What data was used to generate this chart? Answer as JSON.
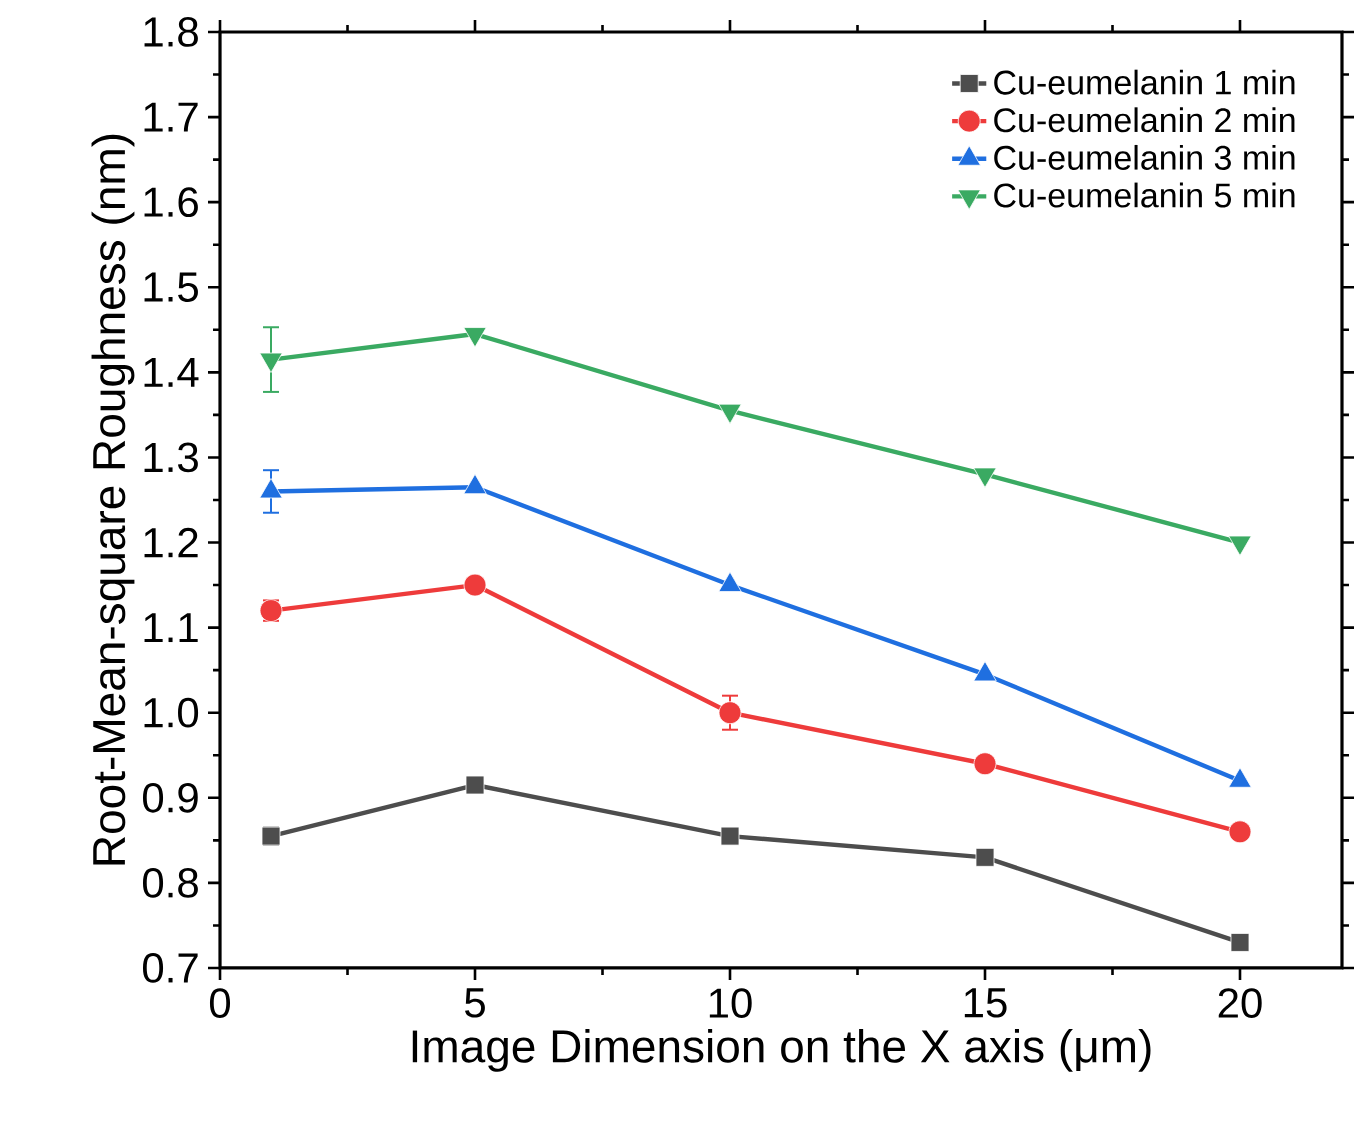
{
  "chart_data": {
    "type": "line",
    "xlabel": "Image Dimension on the X axis (μm)",
    "ylabel": "Root-Mean-square Roughness (nm)",
    "x": [
      1,
      5,
      10,
      15,
      20
    ],
    "xlim": [
      0,
      22
    ],
    "xticks": [
      0,
      5,
      10,
      15,
      20
    ],
    "ylim": [
      0.7,
      1.8
    ],
    "yticks": [
      0.7,
      0.8,
      0.9,
      {
        "value": 1.0,
        "label": "1.0"
      },
      1.1,
      1.2,
      1.3,
      1.4,
      1.5,
      1.6,
      1.7,
      1.8
    ],
    "legend": "top right",
    "grid": false,
    "line_style": "solid",
    "series": [
      {
        "name": "Cu-eumelanin 1 min",
        "color": "#4d4d4d",
        "marker": "square",
        "values": [
          0.855,
          0.915,
          0.855,
          0.83,
          0.73
        ],
        "errors": [
          0.01,
          null,
          null,
          null,
          null
        ]
      },
      {
        "name": "Cu-eumelanin 2 min",
        "color": "#ee3b3b",
        "marker": "circle",
        "values": [
          1.12,
          1.15,
          1.0,
          0.94,
          0.86
        ],
        "errors": [
          0.012,
          null,
          0.02,
          null,
          null
        ]
      },
      {
        "name": "Cu-eumelanin 3 min",
        "color": "#1f6fe0",
        "marker": "triangle",
        "values": [
          1.26,
          1.265,
          1.15,
          1.045,
          0.92
        ],
        "errors": [
          0.025,
          null,
          null,
          null,
          null
        ]
      },
      {
        "name": "Cu-eumelanin 5 min",
        "color": "#3aaa62",
        "marker": "triangle-down",
        "values": [
          1.415,
          1.445,
          1.355,
          1.28,
          1.2
        ],
        "errors": [
          0.038,
          null,
          null,
          null,
          null
        ]
      }
    ]
  }
}
